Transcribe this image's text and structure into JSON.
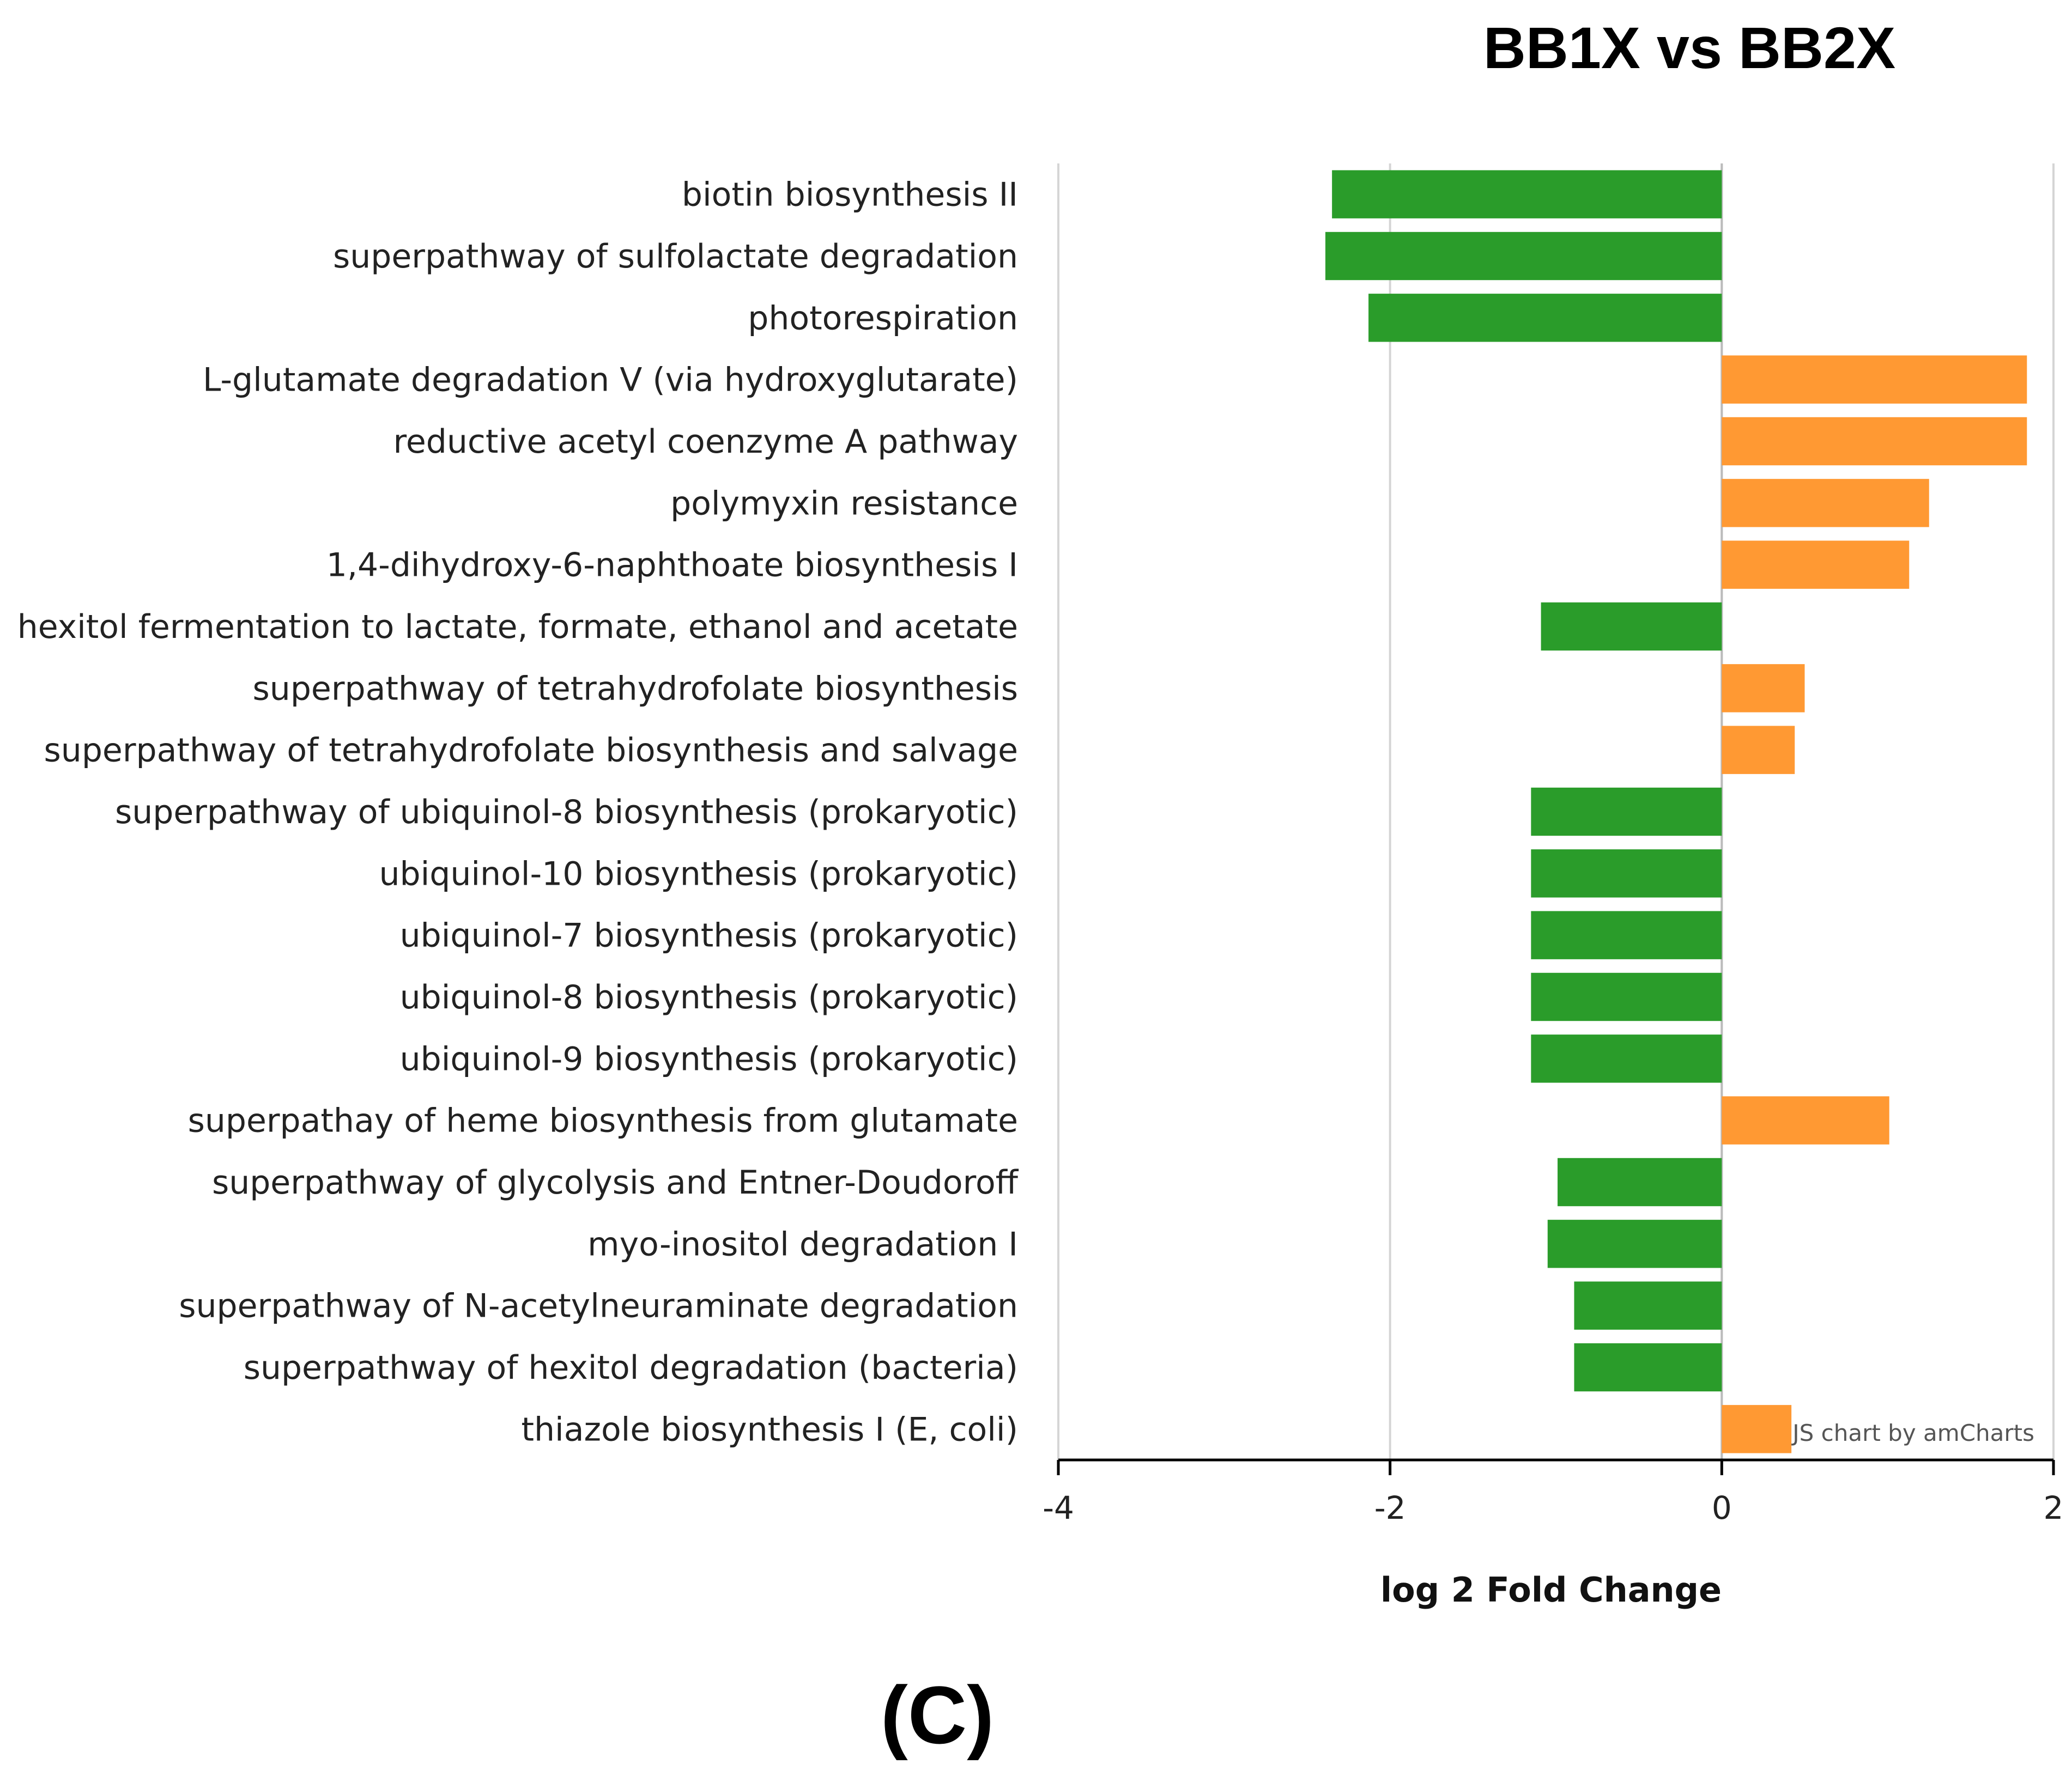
{
  "chart_data": {
    "type": "bar",
    "orientation": "horizontal",
    "title": "BB1X vs  BB2X",
    "xlabel": "log 2 Fold Change",
    "xlim": [
      -4,
      2
    ],
    "xticks": [
      "-4",
      "-2",
      "0",
      "2"
    ],
    "grid": true,
    "credit": "JS chart by amCharts",
    "panel_label": "(C)",
    "colors": {
      "positive": "#FF9933",
      "negative": "#2A9C2A",
      "grid": "#D5D5D5",
      "axis": "#000000"
    },
    "categories": [
      "biotin biosynthesis II",
      "superpathway of sulfolactate degradation",
      "photorespiration",
      "L-glutamate degradation V (via hydroxyglutarate)",
      "reductive acetyl coenzyme A pathway",
      "polymyxin resistance",
      "1,4-dihydroxy-6-naphthoate biosynthesis I",
      "hexitol fermentation to lactate, formate, ethanol and acetate",
      "superpathway of tetrahydrofolate biosynthesis",
      "superpathway of tetrahydrofolate biosynthesis and salvage",
      "superpathway of ubiquinol-8 biosynthesis (prokaryotic)",
      "ubiquinol-10 biosynthesis (prokaryotic)",
      "ubiquinol-7 biosynthesis (prokaryotic)",
      "ubiquinol-8 biosynthesis (prokaryotic)",
      "ubiquinol-9 biosynthesis (prokaryotic)",
      "superpathay of heme biosynthesis from glutamate",
      "superpathway of glycolysis and Entner-Doudoroff",
      "myo-inositol degradation I",
      "superpathway of N-acetylneuraminate degradation",
      "superpathway of hexitol degradation (bacteria)",
      "thiazole biosynthesis I (E, coli)"
    ],
    "values": [
      -2.35,
      -2.39,
      -2.13,
      1.84,
      1.84,
      1.25,
      1.13,
      -1.09,
      0.5,
      0.44,
      -1.15,
      -1.15,
      -1.15,
      -1.15,
      -1.15,
      1.01,
      -0.99,
      -1.05,
      -0.89,
      -0.89,
      0.42
    ]
  }
}
